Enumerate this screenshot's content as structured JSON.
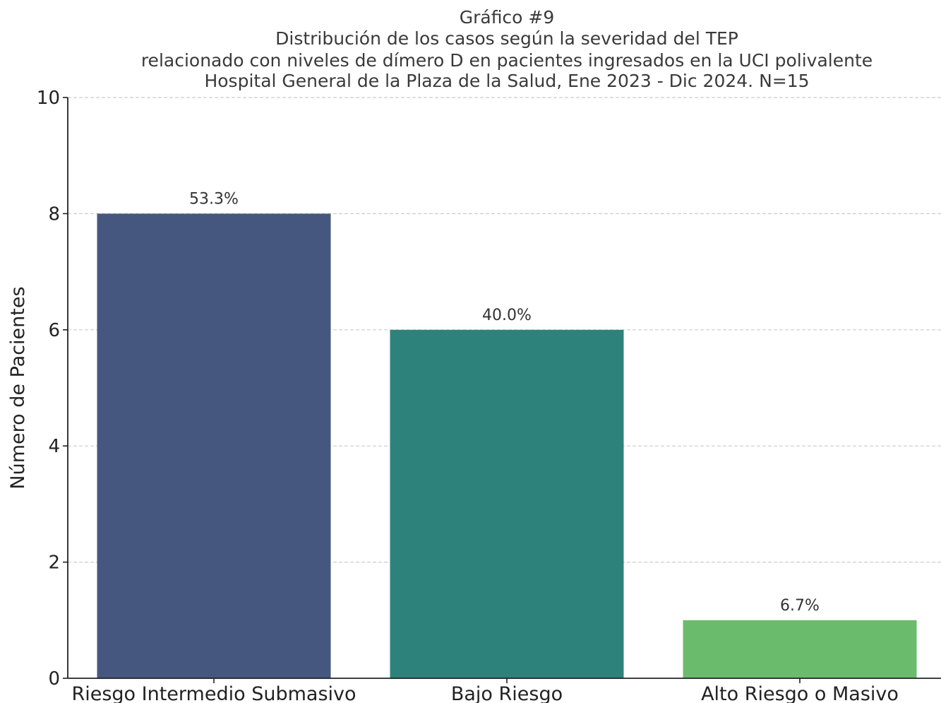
{
  "chart_data": {
    "type": "bar",
    "title_lines": [
      "Gráfico #9",
      "Distribución de los casos según la severidad del TEP",
      "relacionado con niveles de dímero D en pacientes ingresados en la UCI polivalente",
      "Hospital General de la Plaza de la Salud, Ene 2023 - Dic 2024. N=15"
    ],
    "categories": [
      "Riesgo Intermedio Submasivo",
      "Bajo Riesgo",
      "Alto Riesgo o Masivo"
    ],
    "values": [
      8,
      6,
      1
    ],
    "data_labels": [
      "53.3%",
      "40.0%",
      "6.7%"
    ],
    "colors": [
      "#46577f",
      "#2e827c",
      "#6bbb6d"
    ],
    "xlabel": "",
    "ylabel": "Número de Pacientes",
    "ylim": [
      0,
      10
    ],
    "yticks": [
      "0",
      "2",
      "4",
      "6",
      "8",
      "10"
    ],
    "grid": true,
    "grid_axis": "y"
  }
}
